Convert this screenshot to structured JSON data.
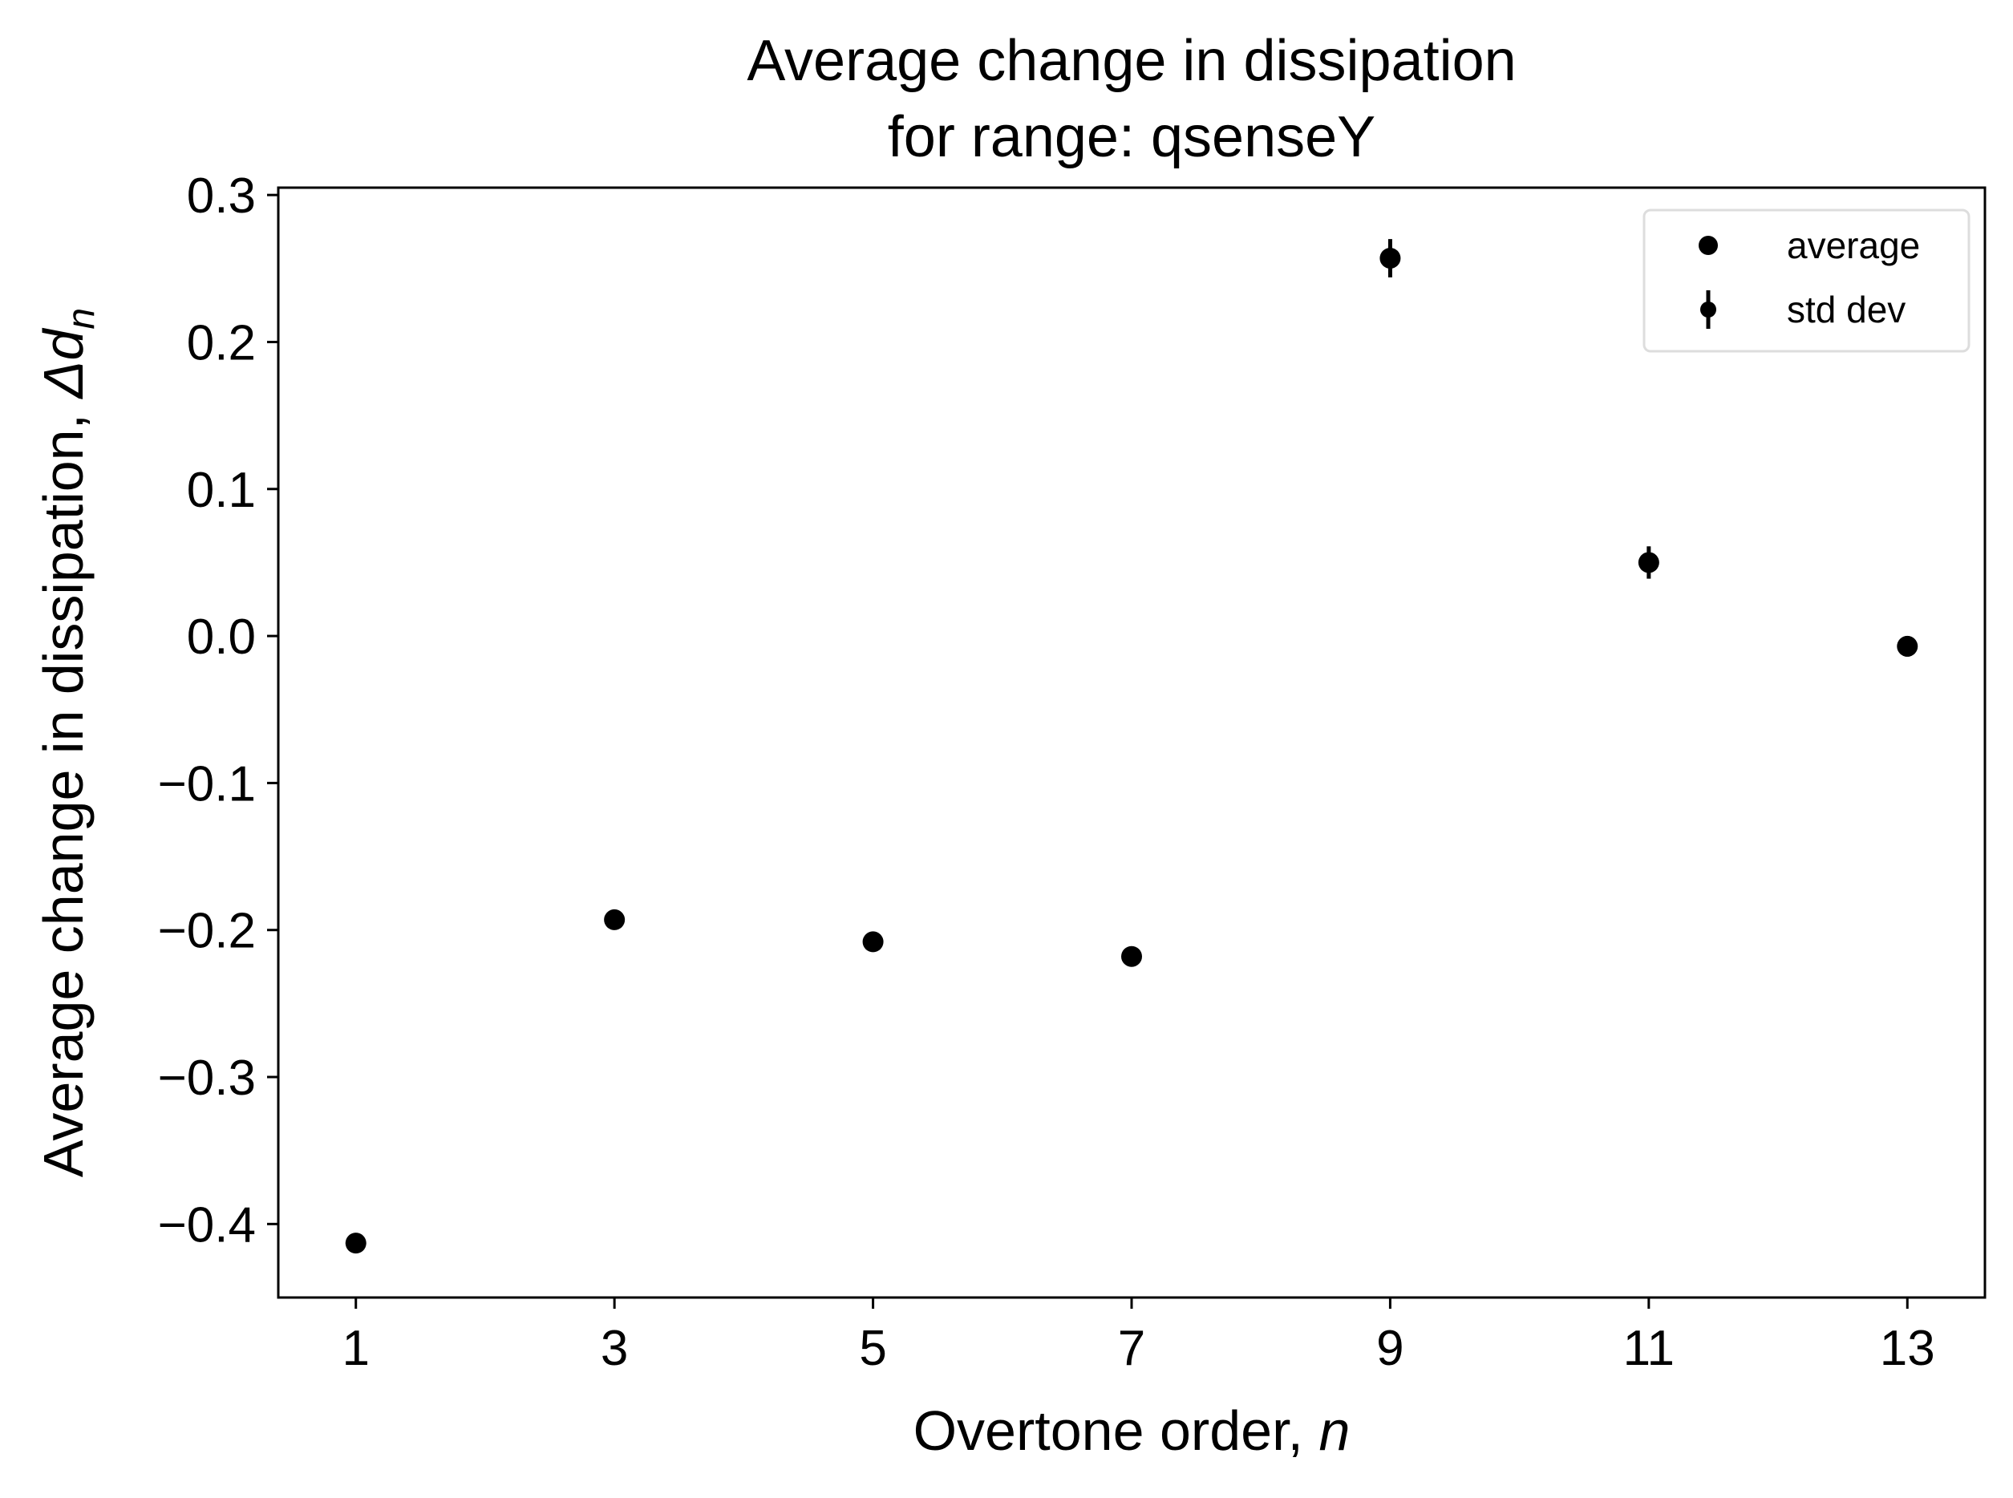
{
  "chart_data": {
    "type": "scatter",
    "title_line1": "Average change in dissipation",
    "title_line2": "for range: qsenseY",
    "xlabel_text": "Overtone order, ",
    "xlabel_var": "n",
    "ylabel_text": "Average change in dissipation, ",
    "ylabel_var": "Δd",
    "ylabel_sub": "n",
    "xlim": [
      0.4,
      13.6
    ],
    "ylim": [
      -0.45,
      0.305
    ],
    "xticks": [
      1,
      3,
      5,
      7,
      9,
      11,
      13
    ],
    "xtick_labels": [
      "1",
      "3",
      "5",
      "7",
      "9",
      "11",
      "13"
    ],
    "yticks": [
      0.3,
      0.2,
      0.1,
      0.0,
      -0.1,
      -0.2,
      -0.3,
      -0.4
    ],
    "ytick_labels": [
      "0.3",
      "0.2",
      "0.1",
      "0.0",
      "−0.1",
      "−0.2",
      "−0.3",
      "−0.4"
    ],
    "series": [
      {
        "name": "average",
        "x": [
          1,
          3,
          5,
          7,
          9,
          11,
          13
        ],
        "y": [
          -0.413,
          -0.193,
          -0.208,
          -0.218,
          0.257,
          0.05,
          -0.007
        ],
        "yerr": [
          0.002,
          0.003,
          0.002,
          0.002,
          0.013,
          0.011,
          0.007
        ]
      }
    ],
    "legend": {
      "position": "upper right",
      "entries": [
        "average",
        "std dev"
      ]
    },
    "marker_color": "#000000"
  }
}
